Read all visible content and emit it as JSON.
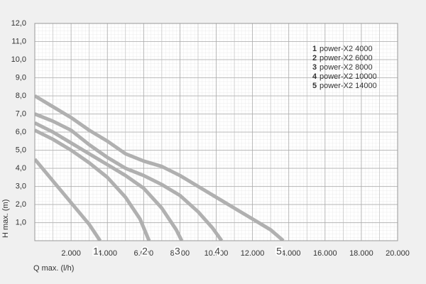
{
  "chart_data": {
    "type": "line",
    "xlabel": "Q max. (l/h)",
    "ylabel": "H max. (m)",
    "xlim": [
      0,
      20000
    ],
    "ylim": [
      0,
      12
    ],
    "xticks": [
      {
        "value": 2000,
        "label": "2.000"
      },
      {
        "value": 4000,
        "label": "4.000"
      },
      {
        "value": 6000,
        "label": "6.000"
      },
      {
        "value": 8000,
        "label": "8.000"
      },
      {
        "value": 10000,
        "label": "10.000"
      },
      {
        "value": 12000,
        "label": "12.000"
      },
      {
        "value": 14000,
        "label": "14.000"
      },
      {
        "value": 16000,
        "label": "16.000"
      },
      {
        "value": 18000,
        "label": "18.000"
      },
      {
        "value": 20000,
        "label": "20.000"
      }
    ],
    "yticks": [
      {
        "value": 1,
        "label": "1,0"
      },
      {
        "value": 2,
        "label": "2,0"
      },
      {
        "value": 3,
        "label": "3,0"
      },
      {
        "value": 4,
        "label": "4,0"
      },
      {
        "value": 5,
        "label": "5,0"
      },
      {
        "value": 6,
        "label": "6,0"
      },
      {
        "value": 7,
        "label": "7,0"
      },
      {
        "value": 8,
        "label": "8,0"
      },
      {
        "value": 9,
        "label": "9,0"
      },
      {
        "value": 10,
        "label": "10,0"
      },
      {
        "value": 11,
        "label": "11,0"
      },
      {
        "value": 12,
        "label": "12,0"
      }
    ],
    "grid": true,
    "series": [
      {
        "label": "1",
        "name": "power-X2 4000",
        "color": "#b0b0b0",
        "x": [
          0,
          1000,
          2000,
          3000,
          3600
        ],
        "values": [
          4.5,
          3.3,
          2.1,
          0.9,
          0
        ]
      },
      {
        "label": "2",
        "name": "power-X2 6000",
        "color": "#b0b0b0",
        "x": [
          0,
          1000,
          2000,
          3000,
          4000,
          5000,
          5800,
          6300
        ],
        "values": [
          6.1,
          5.6,
          5.0,
          4.3,
          3.5,
          2.4,
          1.2,
          0
        ]
      },
      {
        "label": "3",
        "name": "power-X2 8000",
        "color": "#b0b0b0",
        "x": [
          0,
          1000,
          2000,
          3000,
          4000,
          5000,
          6000,
          7000,
          7800,
          8100
        ],
        "values": [
          6.5,
          6.0,
          5.4,
          4.8,
          4.2,
          3.6,
          2.9,
          1.8,
          0.6,
          0
        ]
      },
      {
        "label": "4",
        "name": "power-X2 10000",
        "color": "#b0b0b0",
        "x": [
          0,
          1000,
          2000,
          3000,
          4000,
          5000,
          6000,
          7000,
          8000,
          9000,
          9800,
          10300
        ],
        "values": [
          7.0,
          6.6,
          6.1,
          5.3,
          4.6,
          4.0,
          3.6,
          3.1,
          2.5,
          1.6,
          0.7,
          0
        ]
      },
      {
        "label": "5",
        "name": "power-X2 14000",
        "color": "#b0b0b0",
        "x": [
          0,
          1000,
          2000,
          3000,
          4000,
          5000,
          6000,
          7000,
          8000,
          9000,
          10000,
          11000,
          12000,
          13000,
          13700
        ],
        "values": [
          8.0,
          7.4,
          6.8,
          6.1,
          5.5,
          4.8,
          4.4,
          4.1,
          3.6,
          3.0,
          2.4,
          1.8,
          1.2,
          0.6,
          0
        ]
      }
    ]
  }
}
